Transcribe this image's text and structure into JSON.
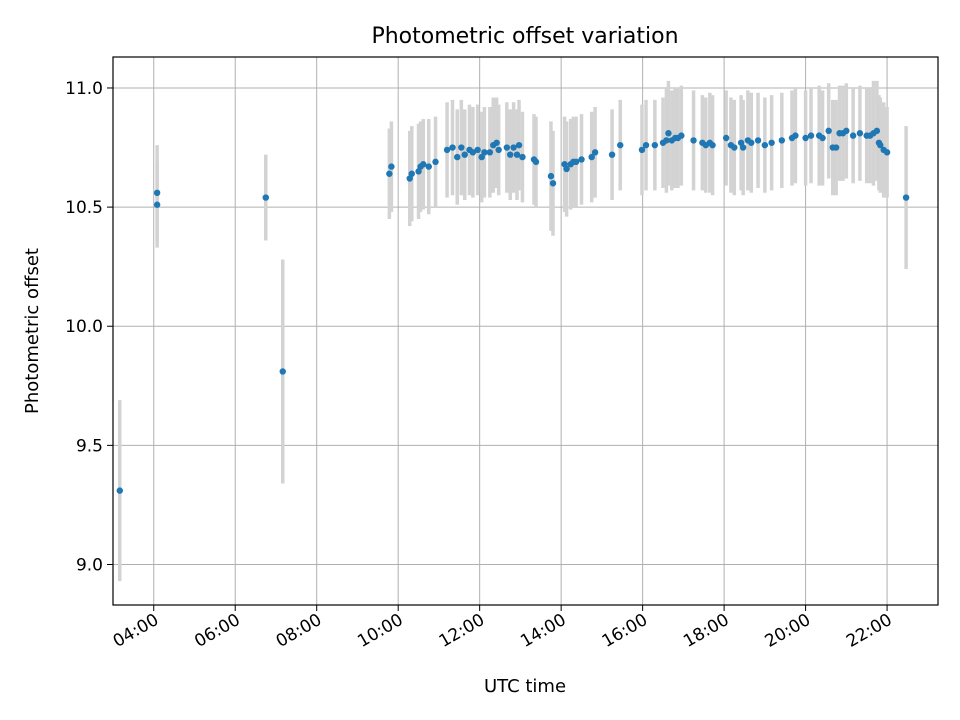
{
  "chart_data": {
    "type": "scatter",
    "title": "Photometric offset variation",
    "xlabel": "UTC time",
    "ylabel": "Photometric offset",
    "xlim": [
      "03:00",
      "23:15"
    ],
    "ylim": [
      8.83,
      11.13
    ],
    "x_ticks": [
      "04:00",
      "06:00",
      "08:00",
      "10:00",
      "12:00",
      "14:00",
      "16:00",
      "18:00",
      "20:00",
      "22:00"
    ],
    "y_ticks": [
      "9.0",
      "9.5",
      "10.0",
      "10.5",
      "11.0"
    ],
    "grid": true,
    "colors": {
      "marker": "#1f77b4",
      "errorbar": "#d3d3d3",
      "grid": "#b0b0b0"
    },
    "series": [
      {
        "x": [
          "03:10",
          "04:05",
          "04:05",
          "06:45",
          "07:10",
          "09:47",
          "09:50",
          "10:17",
          "10:20",
          "10:30",
          "10:33",
          "10:37",
          "10:45",
          "10:55",
          "11:12",
          "11:20",
          "11:27",
          "11:33",
          "11:38",
          "11:45",
          "11:50",
          "11:57",
          "12:03",
          "12:07",
          "12:15",
          "12:20",
          "12:25",
          "12:28",
          "12:40",
          "12:45",
          "12:50",
          "12:55",
          "12:58",
          "13:03",
          "13:20",
          "13:23",
          "13:45",
          "13:48",
          "14:05",
          "14:08",
          "14:14",
          "14:18",
          "14:22",
          "14:30",
          "14:45",
          "14:50",
          "15:15",
          "15:27",
          "15:59",
          "16:05",
          "16:18",
          "16:30",
          "16:35",
          "16:38",
          "16:43",
          "16:48",
          "16:52",
          "16:57",
          "17:15",
          "17:28",
          "17:33",
          "17:39",
          "17:43",
          "18:03",
          "18:10",
          "18:15",
          "18:25",
          "18:28",
          "18:35",
          "18:40",
          "18:50",
          "19:00",
          "19:10",
          "19:25",
          "19:40",
          "19:45",
          "20:00",
          "20:08",
          "20:20",
          "20:25",
          "20:34",
          "20:40",
          "20:45",
          "20:50",
          "20:55",
          "21:00",
          "21:10",
          "21:20",
          "21:30",
          "21:35",
          "21:40",
          "21:45",
          "21:48",
          "21:50",
          "21:55",
          "22:00",
          "22:28"
        ],
        "y": [
          9.31,
          10.56,
          10.51,
          10.54,
          9.81,
          10.64,
          10.67,
          10.62,
          10.64,
          10.65,
          10.67,
          10.68,
          10.67,
          10.69,
          10.74,
          10.75,
          10.71,
          10.75,
          10.72,
          10.74,
          10.73,
          10.74,
          10.71,
          10.73,
          10.73,
          10.76,
          10.77,
          10.74,
          10.75,
          10.72,
          10.75,
          10.72,
          10.76,
          10.71,
          10.7,
          10.69,
          10.63,
          10.6,
          10.68,
          10.66,
          10.68,
          10.69,
          10.69,
          10.7,
          10.71,
          10.73,
          10.72,
          10.76,
          10.74,
          10.76,
          10.76,
          10.77,
          10.78,
          10.81,
          10.78,
          10.79,
          10.79,
          10.8,
          10.78,
          10.77,
          10.76,
          10.77,
          10.76,
          10.79,
          10.76,
          10.75,
          10.77,
          10.75,
          10.78,
          10.77,
          10.78,
          10.76,
          10.77,
          10.78,
          10.79,
          10.8,
          10.79,
          10.8,
          10.8,
          10.79,
          10.82,
          10.75,
          10.75,
          10.81,
          10.81,
          10.82,
          10.8,
          10.81,
          10.8,
          10.8,
          10.81,
          10.82,
          10.77,
          10.76,
          10.74,
          10.73,
          10.54
        ],
        "yerr": [
          0.38,
          0.2,
          0.18,
          0.18,
          0.47,
          0.19,
          0.19,
          0.2,
          0.2,
          0.2,
          0.19,
          0.19,
          0.2,
          0.19,
          0.2,
          0.2,
          0.2,
          0.2,
          0.19,
          0.19,
          0.19,
          0.19,
          0.19,
          0.19,
          0.19,
          0.2,
          0.19,
          0.19,
          0.19,
          0.19,
          0.19,
          0.19,
          0.19,
          0.19,
          0.19,
          0.19,
          0.23,
          0.22,
          0.2,
          0.2,
          0.19,
          0.19,
          0.19,
          0.19,
          0.19,
          0.19,
          0.19,
          0.19,
          0.19,
          0.19,
          0.19,
          0.19,
          0.22,
          0.22,
          0.21,
          0.21,
          0.21,
          0.21,
          0.21,
          0.2,
          0.2,
          0.21,
          0.21,
          0.2,
          0.2,
          0.2,
          0.2,
          0.2,
          0.21,
          0.21,
          0.2,
          0.2,
          0.2,
          0.2,
          0.2,
          0.2,
          0.2,
          0.2,
          0.21,
          0.2,
          0.2,
          0.2,
          0.2,
          0.2,
          0.2,
          0.2,
          0.2,
          0.2,
          0.2,
          0.2,
          0.22,
          0.21,
          0.2,
          0.2,
          0.2,
          0.19,
          0.3
        ]
      }
    ]
  }
}
